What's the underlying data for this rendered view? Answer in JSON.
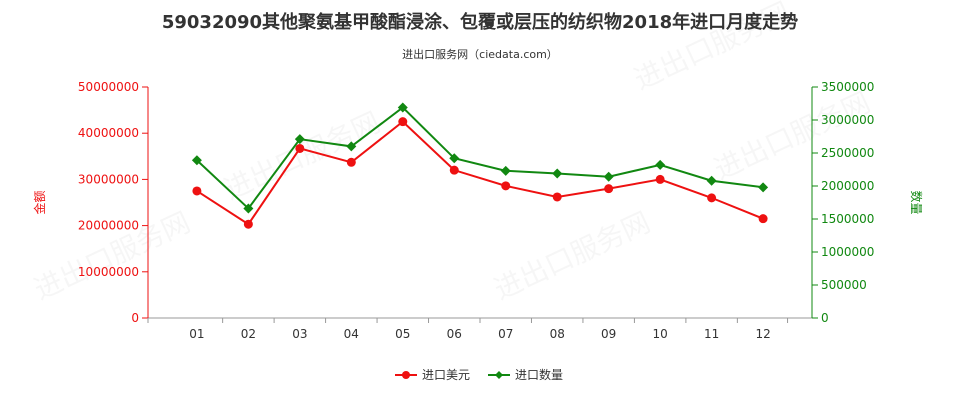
{
  "title": "59032090其他聚氨基甲酸酯浸涂、包覆或层压的纺织物2018年进口月度走势",
  "subtitle": "进出口服务网（ciedata.com）",
  "chart_data": {
    "type": "line",
    "categories": [
      "01",
      "02",
      "03",
      "04",
      "05",
      "06",
      "07",
      "08",
      "09",
      "10",
      "11",
      "12"
    ],
    "y_left": {
      "label": "金额",
      "ylim": [
        0,
        50000000
      ],
      "ticks": [
        "0",
        "10000000",
        "20000000",
        "30000000",
        "40000000",
        "50000000"
      ],
      "color": "#ee1111"
    },
    "y_right": {
      "label": "数量",
      "ylim": [
        0,
        3500000
      ],
      "ticks": [
        "0",
        "500000",
        "1000000",
        "1500000",
        "2000000",
        "2500000",
        "3000000",
        "3500000"
      ],
      "color": "#118811"
    },
    "series": [
      {
        "name": "进口美元",
        "axis": "left",
        "color": "#ee1111",
        "marker": "circle",
        "values": [
          27500000,
          20300000,
          36700000,
          33700000,
          42500000,
          32000000,
          28600000,
          26200000,
          28000000,
          30000000,
          26000000,
          21500000
        ]
      },
      {
        "name": "进口数量",
        "axis": "right",
        "color": "#118811",
        "marker": "diamond",
        "values": [
          2390000,
          1660000,
          2710000,
          2600000,
          3190000,
          2420000,
          2230000,
          2190000,
          2140000,
          2320000,
          2080000,
          1980000
        ]
      }
    ],
    "grid": false,
    "legend_position": "bottom"
  }
}
